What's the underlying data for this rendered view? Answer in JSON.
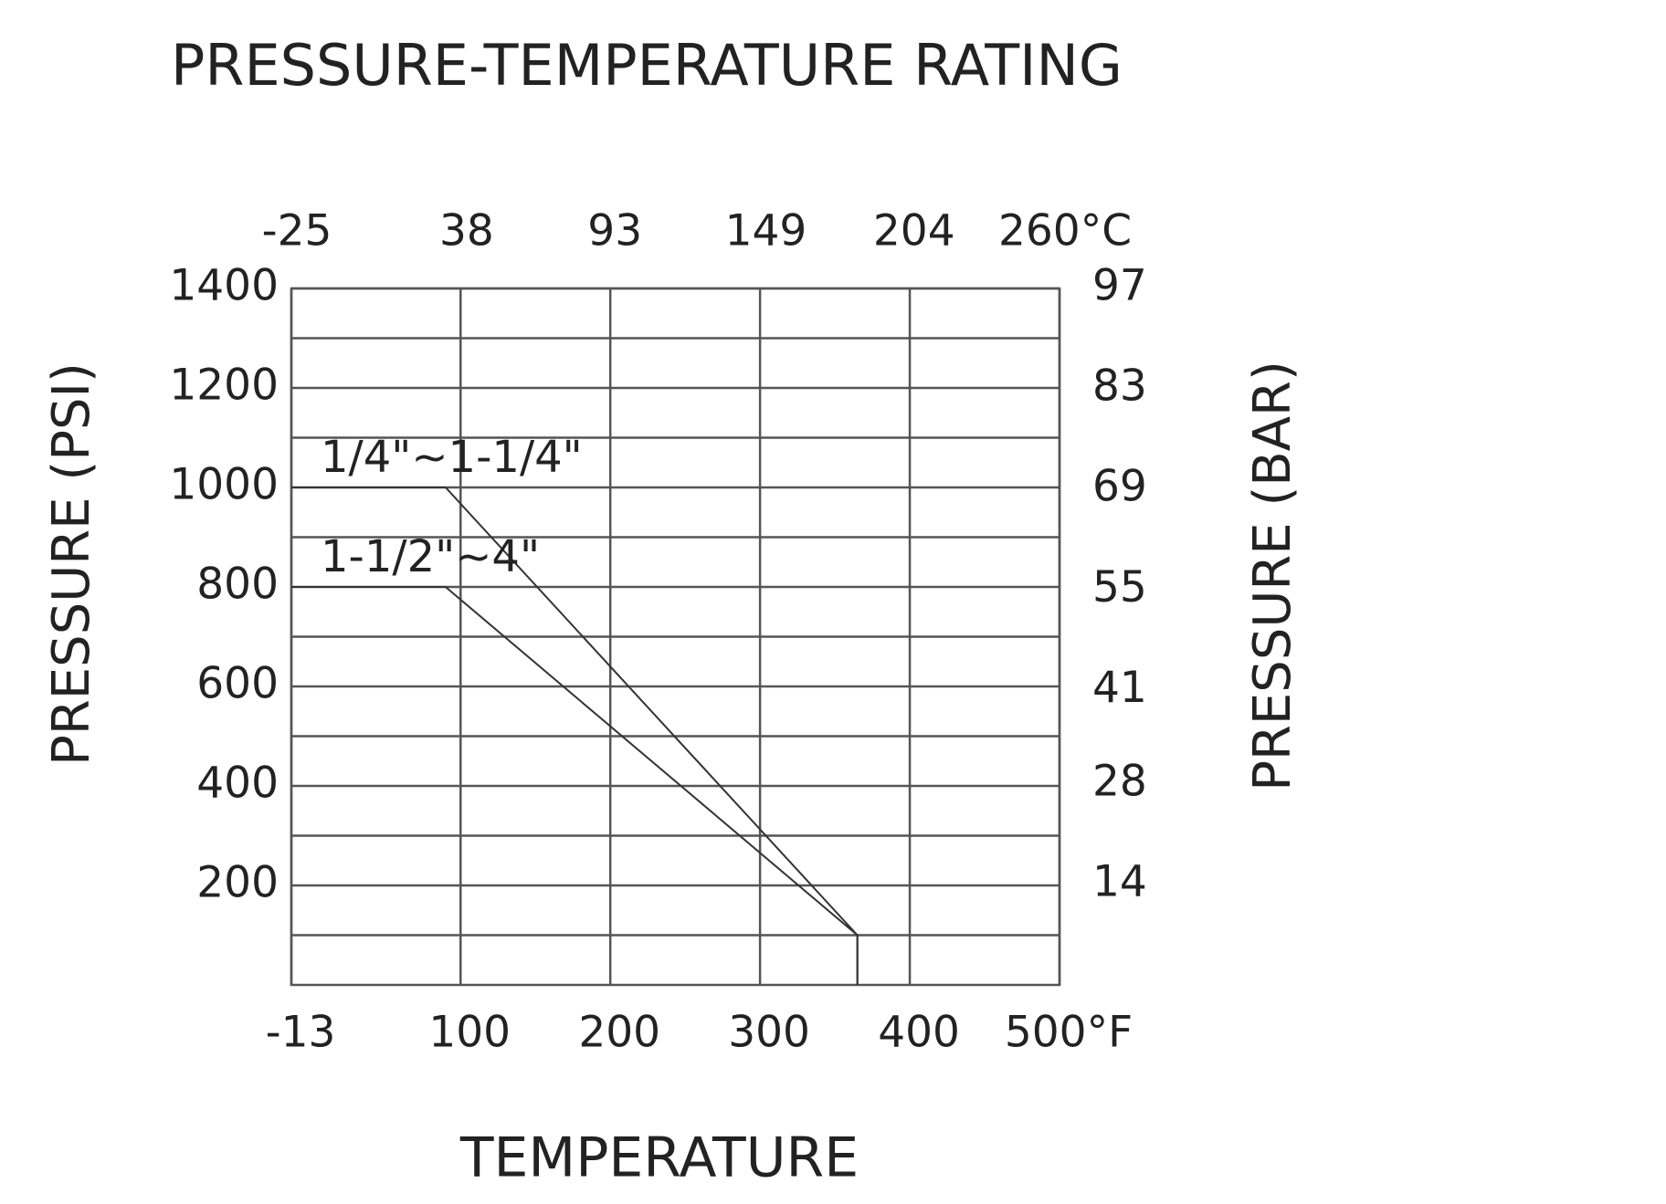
{
  "chart_data": {
    "type": "line",
    "title": "PRESSURE-TEMPERATURE RATING",
    "xlabel": "TEMPERATURE",
    "ylabel": "PRESSURE (PSI)",
    "y2label": "PRESSURE (BAR)",
    "xlim": [
      -13,
      500
    ],
    "xticks": [
      -13,
      100,
      200,
      300,
      400,
      {
        "value": 500,
        "label": "500°F"
      }
    ],
    "x2lim": [
      -25,
      260
    ],
    "x2ticks": [
      -25,
      38,
      93,
      149,
      204,
      {
        "value": 260,
        "label": "260°C"
      }
    ],
    "ylim": [
      0,
      1400
    ],
    "yticks": [
      200,
      400,
      600,
      800,
      1000,
      1200,
      1400
    ],
    "y_minor_ticks": [
      100,
      300,
      500,
      700,
      900,
      1100,
      1300
    ],
    "y2lim": [
      0,
      97
    ],
    "y2ticks": [
      14,
      28,
      41,
      55,
      69,
      83,
      97
    ],
    "grid": true,
    "series": [
      {
        "name": "1/4\"~1-1/4\"",
        "color": "#333333",
        "x": [
          -13,
          90,
          365,
          365
        ],
        "values": [
          1000,
          1000,
          100,
          0
        ]
      },
      {
        "name": "1-1/2\"~4\"",
        "color": "#333333",
        "x": [
          -13,
          90,
          365,
          365
        ],
        "values": [
          800,
          800,
          100,
          0
        ]
      }
    ]
  }
}
